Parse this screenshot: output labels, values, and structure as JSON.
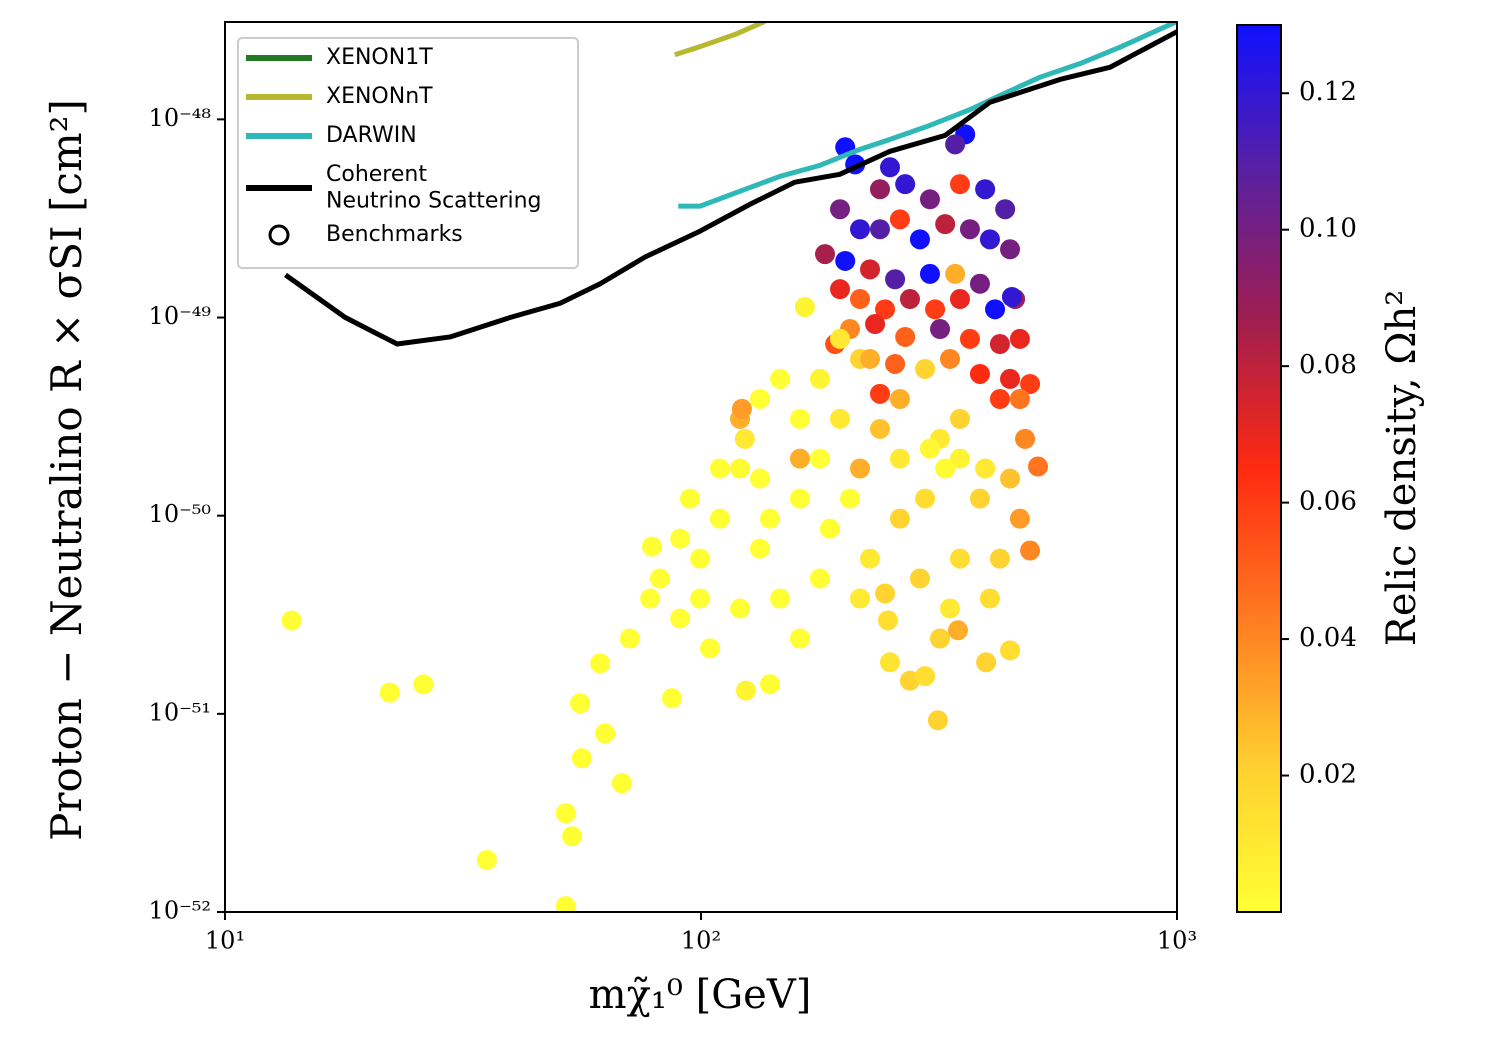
{
  "chart_data": {
    "type": "scatter",
    "x_label": "mχ̃₁⁰ [GeV]",
    "y_label": "Proton − Neutralino R × σSI [cm²]",
    "xscale": "log",
    "yscale": "log",
    "xlim": [
      10,
      1000
    ],
    "ylim": [
      1e-52,
      3.1e-48
    ],
    "xticks": [
      {
        "value": 10,
        "label": "10¹"
      },
      {
        "value": 100,
        "label": "10²"
      },
      {
        "value": 1000,
        "label": "10³"
      }
    ],
    "yticks": [
      {
        "value": 1e-52,
        "label": "10⁻⁵²"
      },
      {
        "value": 1e-51,
        "label": "10⁻⁵¹"
      },
      {
        "value": 1e-50,
        "label": "10⁻⁵⁰"
      },
      {
        "value": 1e-49,
        "label": "10⁻⁴⁹"
      },
      {
        "value": 1e-48,
        "label": "10⁻⁴⁸"
      }
    ],
    "legend": {
      "loc": "upper left",
      "marker_label": "Benchmarks"
    },
    "series": [
      {
        "name": "XENON1T",
        "color": "#217a21",
        "x": [],
        "y": []
      },
      {
        "name": "XENONnT",
        "color": "#b8b830",
        "x": [
          88.1,
          99.6,
          117.8,
          136.2
        ],
        "y": [
          2.12e-48,
          2.33e-48,
          2.68e-48,
          3.12e-48
        ]
      },
      {
        "name": "DARWIN",
        "color": "#2fb8b8",
        "x": [
          89.6,
          99.6,
          120.8,
          146.6,
          177.8,
          215.8,
          249.5,
          302.7,
          367.3,
          424.6,
          515,
          625,
          758,
          1000
        ],
        "y": [
          3.65e-49,
          3.65e-49,
          4.34e-49,
          5.16e-49,
          5.86e-49,
          7.06e-49,
          7.92e-49,
          9.33e-49,
          1.12e-48,
          1.32e-48,
          1.63e-48,
          1.91e-48,
          2.31e-48,
          3.12e-48
        ]
      },
      {
        "name": "Coherent\nNeutrino Scattering",
        "color": "#000000",
        "x": [
          13.4,
          17.9,
          23.0,
          29.7,
          39.7,
          50.6,
          61.4,
          76.3,
          99.6,
          126.8,
          157.5,
          195.7,
          249.5,
          325.8,
          404.6,
          567.5,
          722.8,
          1000
        ],
        "y": [
          1.64e-49,
          1e-49,
          7.35e-50,
          7.98e-50,
          1e-49,
          1.18e-49,
          1.48e-49,
          2.02e-49,
          2.73e-49,
          3.73e-49,
          4.82e-49,
          5.28e-49,
          6.9e-49,
          8.3e-49,
          1.22e-48,
          1.59e-48,
          1.83e-48,
          2.77e-48
        ]
      }
    ],
    "points": {
      "x": [
        13.8,
        22.2,
        26.1,
        35.5,
        52.0,
        53.6,
        52.0,
        56.2,
        55.7,
        61.4,
        68.2,
        62.9,
        70.9,
        78.9,
        78.2,
        90.4,
        99.6,
        109.6,
        94.8,
        120.8,
        123.6,
        133.0,
        146.6,
        165.3,
        133.0,
        146.6,
        161.4,
        124.3,
        139.6,
        86.9,
        104.5,
        120.8,
        121.9,
        177.8,
        161.4,
        195.9,
        215.8,
        205.6,
        226.5,
        243.6,
        215.8,
        247.1,
        249.5,
        274.8,
        295.6,
        314.6,
        317.8,
        346.7,
        397.2,
        445.9,
        491.3,
        510.5,
        479.5,
        491.3,
        467.7,
        456.9,
        445.9,
        435.5,
        395.3,
        358.9,
        341.9,
        200.9,
        210.8,
        249.5,
        237.7,
        268.5,
        302.7,
        350.0,
        195.9,
        215.8,
        237.7,
        261.8,
        288.4,
        325.8,
        367.3,
        404.6,
        200.9,
        182.2,
        226.5,
        255.7,
        302.7,
        341.9,
        385.5,
        450.0,
        195.9,
        215.8,
        243.6,
        274.8,
        310.3,
        350.0,
        414.7,
        205.6,
        232.1,
        268.5,
        317.8,
        367.3,
        424.6,
        191.3,
        226.5,
        255.7,
        295.6,
        333.5,
        385.5,
        445.9,
        467.7,
        424.6,
        350.0,
        317.8,
        350.0,
        395.3,
        445.9,
        385.5,
        467.7,
        261.8,
        295.6,
        237.7,
        261.8,
        215.8,
        261.8,
        237.7,
        424.6,
        350.0,
        288.4,
        404.6,
        333.5,
        186.6,
        177.8,
        99.6,
        120.8,
        139.6,
        90.4,
        82.0,
        109.6,
        133.0,
        161.4,
        161.4,
        177.8,
        195.9,
        302.7,
        325.8
      ],
      "y": [
        2.96e-51,
        1.28e-51,
        1.41e-51,
        1.83e-52,
        1.07e-52,
        2.41e-52,
        3.15e-52,
        5.97e-52,
        1.13e-51,
        1.8e-51,
        4.47e-52,
        7.97e-52,
        2.4e-51,
        6.98e-51,
        3.82e-51,
        3.03e-51,
        6.07e-51,
        9.66e-51,
        1.22e-50,
        1.73e-50,
        2.44e-50,
        3.88e-50,
        4.9e-50,
        1.13e-49,
        6.82e-51,
        3.82e-51,
        2.4e-51,
        1.31e-51,
        1.41e-51,
        1.2e-51,
        2.14e-51,
        3.08e-50,
        3.46e-50,
        1.94e-50,
        1.94e-50,
        3.08e-50,
        6.18e-50,
        1.22e-50,
        6.07e-51,
        4.05e-51,
        3.82e-51,
        2.96e-51,
        1.82e-51,
        1.47e-51,
        1.55e-51,
        9.28e-52,
        2.4e-51,
        2.64e-51,
        1.82e-51,
        2.09e-51,
        6.67e-51,
        1.77e-50,
        2.44e-50,
        4.62e-50,
        7.8e-50,
        1.24e-49,
        2.21e-49,
        3.52e-49,
        4.44e-49,
        8.4e-49,
        7.48e-49,
        7.23e-49,
        5.93e-49,
        5.73e-49,
        4.44e-49,
        4.71e-49,
        3.95e-49,
        4.71e-49,
        3.52e-49,
        2.79e-49,
        2.79e-49,
        3.13e-49,
        2.48e-49,
        2.96e-49,
        2.79e-49,
        2.48e-49,
        1.93e-49,
        2.09e-49,
        1.75e-49,
        1.56e-49,
        1.66e-49,
        1.66e-49,
        1.48e-49,
        1.27e-49,
        1.39e-49,
        1.24e-49,
        1.1e-49,
        1.24e-49,
        1.1e-49,
        1.24e-49,
        1.1e-49,
        8.75e-50,
        9.27e-50,
        7.98e-50,
        8.75e-50,
        7.8e-50,
        7.35e-50,
        7.35e-50,
        6.18e-50,
        5.83e-50,
        5.5e-50,
        6.18e-50,
        5.19e-50,
        4.9e-50,
        3.88e-50,
        3.88e-50,
        3.08e-50,
        2.44e-50,
        1.94e-50,
        1.73e-50,
        1.54e-50,
        1.22e-50,
        9.66e-51,
        9.66e-51,
        1.22e-50,
        2.74e-50,
        1.94e-50,
        1.73e-50,
        3.88e-50,
        4.12e-50,
        6.07e-51,
        6.07e-51,
        4.82e-51,
        3.82e-51,
        3.4e-51,
        8.6e-51,
        4.82e-51,
        3.82e-51,
        3.4e-51,
        9.66e-51,
        7.66e-51,
        4.82e-51,
        1.73e-50,
        1.54e-50,
        3.08e-50,
        1.22e-50,
        4.9e-50,
        7.8e-50,
        2.18e-50,
        1.73e-50
      ],
      "c": [
        0,
        0,
        0,
        0,
        0,
        0,
        0,
        0,
        0,
        0,
        0,
        0,
        0,
        0,
        0,
        0,
        0,
        0,
        0,
        0.002,
        0.01,
        0,
        0,
        0.005,
        0,
        0,
        0,
        0.005,
        0,
        0,
        0,
        0.03,
        0.035,
        0,
        0.03,
        0.01,
        0.02,
        0,
        0.01,
        0.02,
        0.01,
        0.015,
        0.012,
        0.02,
        0.015,
        0.02,
        0.02,
        0.03,
        0.02,
        0.015,
        0.04,
        0.045,
        0.04,
        0.06,
        0.07,
        0.09,
        0.1,
        0.11,
        0.12,
        0.13,
        0.11,
        0.13,
        0.13,
        0.12,
        0.09,
        0.12,
        0.1,
        0.06,
        0.1,
        0.12,
        0.11,
        0.06,
        0.13,
        0.08,
        0.1,
        0.12,
        0.13,
        0.085,
        0.075,
        0.11,
        0.13,
        0.03,
        0.1,
        0.12,
        0.07,
        0.05,
        0.06,
        0.08,
        0.06,
        0.07,
        0.13,
        0.04,
        0.07,
        0.05,
        0.1,
        0.06,
        0.075,
        0.055,
        0.03,
        0.05,
        0.02,
        0.04,
        0.065,
        0.07,
        0.045,
        0.06,
        0.02,
        0.01,
        0.005,
        0.01,
        0.025,
        0.02,
        0.035,
        0.02,
        0.015,
        0.025,
        0.01,
        0.03,
        0.03,
        0.06,
        0.02,
        0.015,
        0.02,
        0.015,
        0.01,
        0,
        0,
        0,
        0,
        0,
        0,
        0,
        0,
        0,
        0,
        0,
        0.005,
        0.01,
        0.003,
        0.002
      ]
    },
    "colorbar": {
      "label": "Relic density, Ωh²",
      "clim": [
        0,
        0.13
      ],
      "ticks": [
        0.02,
        0.04,
        0.06,
        0.08,
        {
          "value": 0.1,
          "label": "0.10"
        },
        0.12
      ],
      "colormap": [
        "#ffff33",
        "#ffcf30",
        "#ff7a20",
        "#ff2a10",
        "#a01e50",
        "#5a20a0",
        "#1010ff"
      ]
    }
  }
}
